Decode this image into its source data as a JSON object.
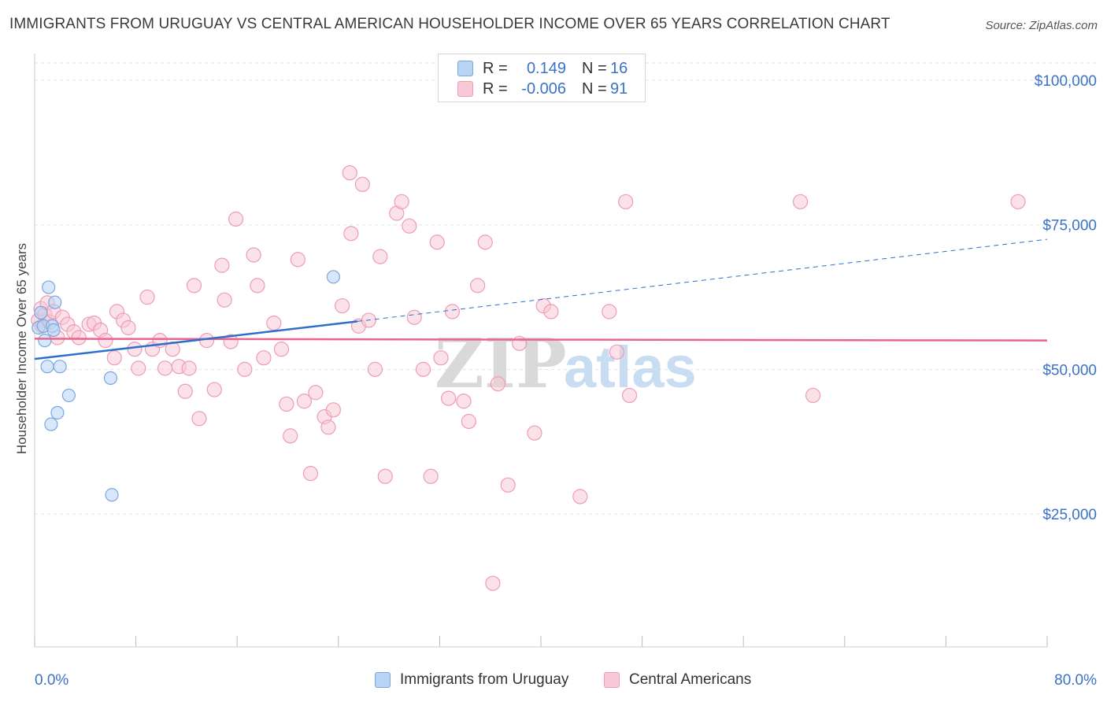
{
  "title": "IMMIGRANTS FROM URUGUAY VS CENTRAL AMERICAN HOUSEHOLDER INCOME OVER 65 YEARS CORRELATION CHART",
  "source": "Source: ZipAtlas.com",
  "watermark": {
    "zip": "ZIP",
    "atlas": "atlas"
  },
  "legend": {
    "rows": [
      {
        "r_label": "R =",
        "r_value": "0.149",
        "n_label": "N =",
        "n_value": "16"
      },
      {
        "r_label": "R =",
        "r_value": "-0.006",
        "n_label": "N =",
        "n_value": "91"
      }
    ]
  },
  "colors": {
    "uruguay_fill": "#b8d3f4",
    "uruguay_stroke": "#7aa7e0",
    "uruguay_line": "#2f6fcc",
    "central_fill": "#f8c8d6",
    "central_stroke": "#ee9cb6",
    "central_line": "#e8648e",
    "axis_text": "#3a72c8",
    "grid": "#e2e2e2"
  },
  "chart_data": {
    "type": "scatter",
    "title": "IMMIGRANTS FROM URUGUAY VS CENTRAL AMERICAN HOUSEHOLDER INCOME OVER 65 YEARS CORRELATION CHART",
    "xlabel": "",
    "ylabel": "Householder Income Over 65 years",
    "xlim": [
      0,
      80
    ],
    "ylim": [
      2000,
      103000
    ],
    "x_tick_labels": [
      "0.0%",
      "80.0%"
    ],
    "y_ticks": [
      25000,
      50000,
      75000,
      100000
    ],
    "y_tick_labels": [
      "$25,000",
      "$50,000",
      "$75,000",
      "$100,000"
    ],
    "grid": true,
    "legend_position": "bottom",
    "series": [
      {
        "name": "Immigrants from Uruguay",
        "x": [
          0.3,
          0.5,
          0.7,
          0.8,
          1.0,
          1.1,
          1.3,
          1.4,
          1.5,
          1.6,
          1.8,
          2.0,
          2.7,
          6.0,
          6.1,
          23.6
        ],
        "y": [
          57200,
          59800,
          57500,
          55000,
          50500,
          64200,
          40500,
          57500,
          56800,
          61600,
          42500,
          50500,
          45500,
          48500,
          28300,
          66000
        ],
        "trend": {
          "x": [
            0,
            25.5
          ],
          "y": [
            51800,
            58300
          ],
          "dashed_to": [
            80,
            72500
          ]
        }
      },
      {
        "name": "Central Americans",
        "x": [
          0.3,
          0.5,
          0.6,
          0.8,
          1.0,
          1.2,
          1.5,
          1.8,
          2.2,
          2.6,
          3.1,
          3.5,
          4.3,
          4.7,
          5.2,
          5.6,
          6.3,
          6.5,
          7.0,
          7.4,
          7.9,
          8.2,
          8.9,
          9.3,
          9.9,
          10.3,
          10.9,
          11.4,
          11.9,
          12.2,
          12.6,
          13.0,
          13.6,
          14.2,
          14.8,
          15.0,
          15.5,
          15.9,
          16.6,
          17.3,
          17.6,
          18.1,
          18.9,
          19.5,
          19.9,
          20.2,
          20.8,
          21.3,
          21.8,
          22.2,
          22.9,
          23.2,
          23.6,
          24.3,
          24.9,
          25.0,
          25.6,
          25.9,
          26.4,
          26.9,
          27.3,
          27.7,
          28.6,
          29.0,
          29.6,
          30.0,
          30.7,
          31.3,
          31.8,
          32.1,
          32.7,
          33.0,
          33.9,
          34.3,
          35.0,
          35.6,
          36.2,
          36.6,
          37.4,
          38.3,
          39.5,
          40.2,
          40.8,
          43.1,
          45.4,
          46.0,
          46.7,
          47.0,
          60.5,
          61.5,
          77.7
        ],
        "y": [
          58500,
          60500,
          57500,
          59500,
          61500,
          58200,
          60000,
          55500,
          59000,
          57800,
          56500,
          55500,
          57800,
          58000,
          56800,
          55000,
          52000,
          60000,
          58500,
          57200,
          53500,
          50200,
          62500,
          53500,
          55000,
          50200,
          53500,
          50500,
          46200,
          50200,
          64500,
          41500,
          55000,
          46500,
          68000,
          62000,
          54800,
          76000,
          50000,
          69800,
          64500,
          52000,
          58000,
          53500,
          44000,
          38500,
          69000,
          44500,
          32000,
          46000,
          41800,
          40000,
          43000,
          61000,
          84000,
          73500,
          57500,
          82000,
          58500,
          50000,
          69500,
          31500,
          77000,
          79000,
          74800,
          59000,
          50000,
          31500,
          72000,
          52000,
          45000,
          60000,
          44500,
          41000,
          64500,
          72000,
          13000,
          47500,
          30000,
          54500,
          39000,
          61000,
          60000,
          28000,
          60000,
          53000,
          79000,
          45500,
          79000,
          45500,
          79000
        ],
        "trend": {
          "x": [
            0,
            80
          ],
          "y": [
            55300,
            55000
          ]
        }
      }
    ]
  }
}
